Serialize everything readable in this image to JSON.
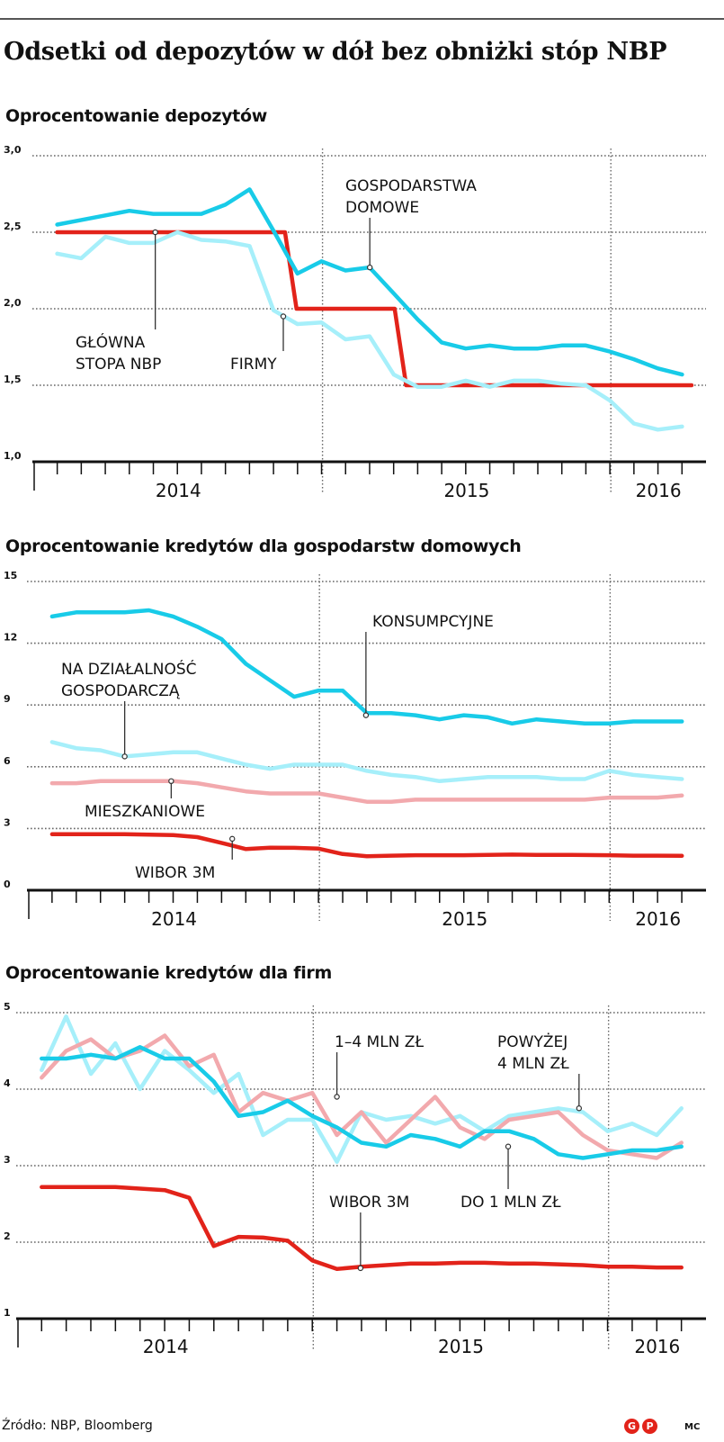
{
  "title": "Odsetki od depozytów w dół bez obniżki stóp NBP",
  "footer": {
    "source": "Źródło: NBP, Bloomberg",
    "logo_text_1": "G",
    "logo_text_2": "P",
    "author": "MC"
  },
  "colors": {
    "red": "#e2231a",
    "cyan": "#18cbe8",
    "light_cyan": "#a6effa",
    "pink": "#f2a9ad",
    "grid": "#666666"
  },
  "chart_data": [
    {
      "type": "line",
      "title": "Oprocentowanie depozytów",
      "ylim": [
        1.0,
        3.0
      ],
      "yticks": [
        1.0,
        1.5,
        2.0,
        2.5,
        3.0
      ],
      "ytick_labels": [
        "1,0",
        "1,5",
        "2,0",
        "2,5",
        "3,0"
      ],
      "x_start": 2013.92,
      "x_end": 2016.25,
      "year_labels": [
        "2014",
        "2015",
        "2016"
      ],
      "series": [
        {
          "name": "GŁÓWNA STOPA NBP",
          "color": "#e2231a",
          "width": 4.5,
          "step": true,
          "x": [
            2014.0,
            2014.79,
            2014.83,
            2015.17,
            2015.21,
            2016.2
          ],
          "values": [
            2.5,
            2.5,
            2.0,
            2.0,
            1.5,
            1.5
          ]
        },
        {
          "name": "GOSPODARSTWA DOMOWE",
          "color": "#18cbe8",
          "width": 4.5,
          "x": [
            2014.0,
            2014.083,
            2014.167,
            2014.25,
            2014.333,
            2014.417,
            2014.5,
            2014.583,
            2014.667,
            2014.75,
            2014.833,
            2014.917,
            2015.0,
            2015.083,
            2015.167,
            2015.25,
            2015.333,
            2015.417,
            2015.5,
            2015.583,
            2015.667,
            2015.75,
            2015.833,
            2015.917,
            2016.0,
            2016.083,
            2016.167
          ],
          "values": [
            2.55,
            2.58,
            2.61,
            2.64,
            2.62,
            2.62,
            2.62,
            2.68,
            2.78,
            2.51,
            2.23,
            2.31,
            2.25,
            2.27,
            2.1,
            1.93,
            1.78,
            1.74,
            1.76,
            1.74,
            1.74,
            1.76,
            1.76,
            1.72,
            1.67,
            1.61,
            1.57
          ]
        },
        {
          "name": "FIRMY",
          "color": "#a6effa",
          "width": 4.5,
          "x": [
            2014.0,
            2014.083,
            2014.167,
            2014.25,
            2014.333,
            2014.417,
            2014.5,
            2014.583,
            2014.667,
            2014.75,
            2014.833,
            2014.917,
            2015.0,
            2015.083,
            2015.167,
            2015.25,
            2015.333,
            2015.417,
            2015.5,
            2015.583,
            2015.667,
            2015.75,
            2015.833,
            2015.917,
            2016.0,
            2016.083,
            2016.167
          ],
          "values": [
            2.36,
            2.33,
            2.47,
            2.43,
            2.43,
            2.5,
            2.45,
            2.44,
            2.41,
            1.99,
            1.9,
            1.91,
            1.8,
            1.82,
            1.57,
            1.49,
            1.49,
            1.53,
            1.49,
            1.53,
            1.53,
            1.51,
            1.5,
            1.4,
            1.25,
            1.21,
            1.23
          ]
        }
      ],
      "annotations": [
        {
          "lines": [
            "GOSPODARSTWA",
            "DOMOWE"
          ],
          "anchor_series": "GOSPODARSTWA DOMOWE",
          "x": 2015.084,
          "y": 2.27
        },
        {
          "lines": [
            "GŁÓWNA",
            "STOPA NBP"
          ],
          "anchor_series": "GŁÓWNA STOPA NBP",
          "x": 2014.34,
          "y": 2.5
        },
        {
          "lines": [
            "FIRMY"
          ],
          "anchor_series": "FIRMY",
          "x": 2014.784,
          "y": 1.95
        }
      ]
    },
    {
      "type": "line",
      "title": "Oprocentowanie kredytów dla gospodarstw domowych",
      "ylim": [
        0,
        15
      ],
      "yticks": [
        0,
        3,
        6,
        9,
        12,
        15
      ],
      "ytick_labels": [
        "0",
        "3",
        "6",
        "9",
        "12",
        "15"
      ],
      "x_start": 2013.92,
      "x_end": 2016.25,
      "year_labels": [
        "2014",
        "2015",
        "2016"
      ],
      "series": [
        {
          "name": "KONSUMPCYJNE",
          "color": "#18cbe8",
          "width": 4.5,
          "x": [
            2014.0,
            2014.083,
            2014.167,
            2014.25,
            2014.333,
            2014.417,
            2014.5,
            2014.583,
            2014.667,
            2014.75,
            2014.833,
            2014.917,
            2015.0,
            2015.083,
            2015.167,
            2015.25,
            2015.333,
            2015.417,
            2015.5,
            2015.583,
            2015.667,
            2015.75,
            2015.833,
            2015.917,
            2016.0,
            2016.083,
            2016.167
          ],
          "values": [
            13.3,
            13.5,
            13.5,
            13.5,
            13.6,
            13.3,
            12.8,
            12.2,
            11.0,
            10.2,
            9.4,
            9.7,
            9.7,
            8.6,
            8.6,
            8.5,
            8.3,
            8.5,
            8.4,
            8.1,
            8.3,
            8.2,
            8.1,
            8.1,
            8.2,
            8.2,
            8.2
          ]
        },
        {
          "name": "NA DZIAŁALNOŚĆ GOSPODARCZĄ",
          "color": "#a6effa",
          "width": 4.5,
          "x": [
            2014.0,
            2014.083,
            2014.167,
            2014.25,
            2014.333,
            2014.417,
            2014.5,
            2014.583,
            2014.667,
            2014.75,
            2014.833,
            2014.917,
            2015.0,
            2015.083,
            2015.167,
            2015.25,
            2015.333,
            2015.417,
            2015.5,
            2015.583,
            2015.667,
            2015.75,
            2015.833,
            2015.917,
            2016.0,
            2016.083,
            2016.167
          ],
          "values": [
            7.2,
            6.9,
            6.8,
            6.5,
            6.6,
            6.7,
            6.7,
            6.4,
            6.1,
            5.9,
            6.1,
            6.1,
            6.1,
            5.8,
            5.6,
            5.5,
            5.3,
            5.4,
            5.5,
            5.5,
            5.5,
            5.4,
            5.4,
            5.8,
            5.6,
            5.5,
            5.4
          ]
        },
        {
          "name": "MIESZKANIOWE",
          "color": "#f2a9ad",
          "width": 4.5,
          "x": [
            2014.0,
            2014.083,
            2014.167,
            2014.25,
            2014.333,
            2014.417,
            2014.5,
            2014.583,
            2014.667,
            2014.75,
            2014.833,
            2014.917,
            2015.0,
            2015.083,
            2015.167,
            2015.25,
            2015.333,
            2015.417,
            2015.5,
            2015.583,
            2015.667,
            2015.75,
            2015.833,
            2015.917,
            2016.0,
            2016.083,
            2016.167
          ],
          "values": [
            5.2,
            5.2,
            5.3,
            5.3,
            5.3,
            5.3,
            5.2,
            5.0,
            4.8,
            4.7,
            4.7,
            4.7,
            4.5,
            4.3,
            4.3,
            4.4,
            4.4,
            4.4,
            4.4,
            4.4,
            4.4,
            4.4,
            4.4,
            4.5,
            4.5,
            4.5,
            4.6
          ]
        },
        {
          "name": "WIBOR 3M",
          "color": "#e2231a",
          "width": 4.5,
          "x": [
            2014.0,
            2014.083,
            2014.167,
            2014.25,
            2014.333,
            2014.417,
            2014.5,
            2014.583,
            2014.667,
            2014.75,
            2014.833,
            2014.917,
            2015.0,
            2015.083,
            2015.167,
            2015.25,
            2015.333,
            2015.417,
            2015.5,
            2015.583,
            2015.667,
            2015.75,
            2015.833,
            2015.917,
            2016.0,
            2016.083,
            2016.167
          ],
          "values": [
            2.72,
            2.72,
            2.72,
            2.72,
            2.7,
            2.68,
            2.58,
            2.3,
            2.0,
            2.07,
            2.06,
            2.02,
            1.76,
            1.65,
            1.68,
            1.7,
            1.7,
            1.7,
            1.72,
            1.73,
            1.72,
            1.72,
            1.71,
            1.7,
            1.68,
            1.68,
            1.67
          ]
        }
      ],
      "annotations": [
        {
          "lines": [
            "KONSUMPCYJNE"
          ],
          "anchor_series": "KONSUMPCYJNE",
          "x": 2015.08,
          "y": 8.5
        },
        {
          "lines": [
            "NA DZIAŁALNOŚĆ",
            "GOSPODARCZĄ"
          ],
          "anchor_series": "NA DZIAŁALNOŚĆ GOSPODARCZĄ",
          "x": 2014.25,
          "y": 6.5
        },
        {
          "lines": [
            "MIESZKANIOWE"
          ],
          "anchor_series": "MIESZKANIOWE",
          "x": 2014.41,
          "y": 5.3
        },
        {
          "lines": [
            "WIBOR 3M"
          ],
          "anchor_series": "WIBOR 3M",
          "x": 2014.62,
          "y": 2.5
        }
      ]
    },
    {
      "type": "line",
      "title": "Oprocentowanie kredytów dla firm",
      "ylim": [
        1,
        5
      ],
      "yticks": [
        1,
        2,
        3,
        4,
        5
      ],
      "ytick_labels": [
        "1",
        "2",
        "3",
        "4",
        "5"
      ],
      "x_start": 2013.92,
      "x_end": 2016.25,
      "year_labels": [
        "2014",
        "2015",
        "2016"
      ],
      "series": [
        {
          "name": "1–4 MLN ZŁ",
          "color": "#a6effa",
          "width": 4.5,
          "x": [
            2014.0,
            2014.083,
            2014.167,
            2014.25,
            2014.333,
            2014.417,
            2014.5,
            2014.583,
            2014.667,
            2014.75,
            2014.833,
            2014.917,
            2015.0,
            2015.083,
            2015.167,
            2015.25,
            2015.333,
            2015.417,
            2015.5,
            2015.583,
            2015.667,
            2015.75,
            2015.833,
            2015.917,
            2016.0,
            2016.083,
            2016.167
          ],
          "values": [
            4.25,
            4.95,
            4.2,
            4.6,
            4.0,
            4.5,
            4.25,
            3.95,
            4.2,
            3.4,
            3.6,
            3.6,
            3.05,
            3.7,
            3.6,
            3.65,
            3.55,
            3.65,
            3.45,
            3.65,
            3.7,
            3.75,
            3.7,
            3.45,
            3.55,
            3.4,
            3.75
          ]
        },
        {
          "name": "POWYŻEJ 4 MLN ZŁ",
          "color": "#f2a9ad",
          "width": 4.5,
          "x": [
            2014.0,
            2014.083,
            2014.167,
            2014.25,
            2014.333,
            2014.417,
            2014.5,
            2014.583,
            2014.667,
            2014.75,
            2014.833,
            2014.917,
            2015.0,
            2015.083,
            2015.167,
            2015.25,
            2015.333,
            2015.417,
            2015.5,
            2015.583,
            2015.667,
            2015.75,
            2015.833,
            2015.917,
            2016.0,
            2016.083,
            2016.167
          ],
          "values": [
            4.15,
            4.5,
            4.65,
            4.4,
            4.5,
            4.7,
            4.3,
            4.45,
            3.7,
            3.95,
            3.85,
            3.95,
            3.4,
            3.7,
            3.3,
            3.6,
            3.9,
            3.5,
            3.35,
            3.6,
            3.65,
            3.7,
            3.4,
            3.2,
            3.15,
            3.1,
            3.3
          ]
        },
        {
          "name": "DO 1 MLN ZŁ",
          "color": "#18cbe8",
          "width": 4.5,
          "x": [
            2014.0,
            2014.083,
            2014.167,
            2014.25,
            2014.333,
            2014.417,
            2014.5,
            2014.583,
            2014.667,
            2014.75,
            2014.833,
            2014.917,
            2015.0,
            2015.083,
            2015.167,
            2015.25,
            2015.333,
            2015.417,
            2015.5,
            2015.583,
            2015.667,
            2015.75,
            2015.833,
            2015.917,
            2016.0,
            2016.083,
            2016.167
          ],
          "values": [
            4.4,
            4.4,
            4.45,
            4.4,
            4.55,
            4.4,
            4.4,
            4.1,
            3.65,
            3.7,
            3.85,
            3.65,
            3.5,
            3.3,
            3.25,
            3.4,
            3.35,
            3.25,
            3.45,
            3.45,
            3.35,
            3.15,
            3.1,
            3.15,
            3.2,
            3.2,
            3.25
          ]
        },
        {
          "name": "WIBOR 3M",
          "color": "#e2231a",
          "width": 4.5,
          "x": [
            2014.0,
            2014.083,
            2014.167,
            2014.25,
            2014.333,
            2014.417,
            2014.5,
            2014.583,
            2014.667,
            2014.75,
            2014.833,
            2014.917,
            2015.0,
            2015.083,
            2015.167,
            2015.25,
            2015.333,
            2015.417,
            2015.5,
            2015.583,
            2015.667,
            2015.75,
            2015.833,
            2015.917,
            2016.0,
            2016.083,
            2016.167
          ],
          "values": [
            2.72,
            2.72,
            2.72,
            2.72,
            2.7,
            2.68,
            2.58,
            1.95,
            2.07,
            2.06,
            2.02,
            1.76,
            1.65,
            1.68,
            1.7,
            1.72,
            1.72,
            1.73,
            1.73,
            1.72,
            1.72,
            1.71,
            1.7,
            1.68,
            1.68,
            1.67,
            1.67
          ]
        }
      ],
      "annotations": [
        {
          "lines": [
            "1–4 MLN ZŁ"
          ],
          "anchor_series": "1–4 MLN ZŁ",
          "x": 2015.0,
          "y": 3.9
        },
        {
          "lines": [
            "POWYŻEJ",
            "4 MLN ZŁ"
          ],
          "anchor_series": "POWYŻEJ 4 MLN ZŁ",
          "x": 2015.82,
          "y": 3.75
        },
        {
          "lines": [
            "WIBOR 3M"
          ],
          "anchor_series": "WIBOR 3M",
          "x": 2015.08,
          "y": 1.66
        },
        {
          "lines": [
            "DO 1 MLN ZŁ"
          ],
          "anchor_series": "DO 1 MLN ZŁ",
          "x": 2015.58,
          "y": 3.25
        }
      ]
    }
  ]
}
